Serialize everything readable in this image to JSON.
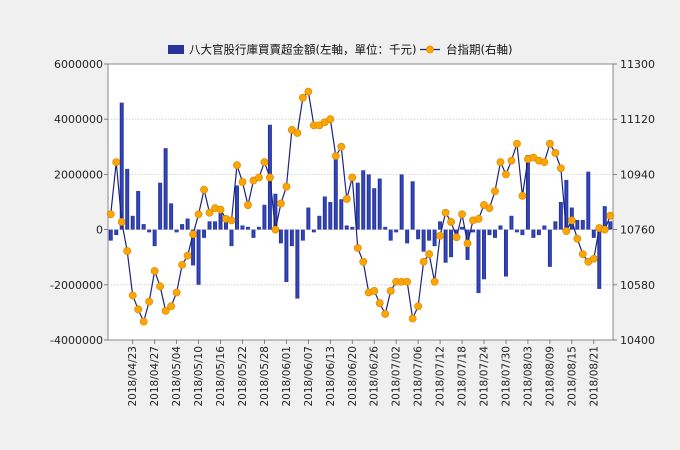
{
  "chart_data": {
    "type": "bar-line-combo",
    "title": "",
    "legend": {
      "position": "top-center",
      "items": [
        {
          "label": "八大官股行庫買賣超金額(左軸，單位：千元)",
          "kind": "bar",
          "color": "#27329a"
        },
        {
          "label": "台指期(右軸)",
          "kind": "line-marker",
          "color": "#1a237e",
          "marker": "#ffa500"
        }
      ]
    },
    "grid": true,
    "y_left": {
      "min": -4000000,
      "max": 6000000,
      "ticks": [
        -4000000,
        -2000000,
        0,
        2000000,
        4000000,
        6000000
      ],
      "tick_labels": [
        "-4000000",
        "-2000000",
        "0",
        "2000000",
        "4000000",
        "6000000"
      ]
    },
    "y_right": {
      "min": 10400,
      "max": 11300,
      "ticks": [
        10400,
        10580,
        10760,
        10940,
        11120,
        11300
      ],
      "tick_labels": [
        "10400",
        "10580",
        "10760",
        "10940",
        "11120",
        "11300"
      ]
    },
    "x_tick_labels": [
      {
        "index": 4,
        "label": "2018/04/23"
      },
      {
        "index": 8,
        "label": "2018/04/27"
      },
      {
        "index": 12,
        "label": "2018/05/04"
      },
      {
        "index": 16,
        "label": "2018/05/10"
      },
      {
        "index": 20,
        "label": "2018/05/16"
      },
      {
        "index": 24,
        "label": "2018/05/22"
      },
      {
        "index": 28,
        "label": "2018/05/28"
      },
      {
        "index": 32,
        "label": "2018/06/01"
      },
      {
        "index": 36,
        "label": "2018/06/07"
      },
      {
        "index": 40,
        "label": "2018/06/13"
      },
      {
        "index": 44,
        "label": "2018/06/20"
      },
      {
        "index": 48,
        "label": "2018/06/26"
      },
      {
        "index": 52,
        "label": "2018/07/02"
      },
      {
        "index": 56,
        "label": "2018/07/06"
      },
      {
        "index": 60,
        "label": "2018/07/12"
      },
      {
        "index": 64,
        "label": "2018/07/18"
      },
      {
        "index": 68,
        "label": "2018/07/24"
      },
      {
        "index": 72,
        "label": "2018/07/30"
      },
      {
        "index": 76,
        "label": "2018/08/03"
      },
      {
        "index": 80,
        "label": "2018/08/09"
      },
      {
        "index": 84,
        "label": "2018/08/15"
      },
      {
        "index": 88,
        "label": "2018/08/21"
      }
    ],
    "series": [
      {
        "name": "八大官股行庫買賣超金額(左軸，單位：千元)",
        "axis": "left",
        "type": "bar",
        "values": [
          -400000,
          -200000,
          4600000,
          2200000,
          500000,
          1400000,
          200000,
          -100000,
          -600000,
          1700000,
          2950000,
          950000,
          -100000,
          200000,
          400000,
          -1300000,
          -2000000,
          -300000,
          300000,
          300000,
          600000,
          300000,
          -600000,
          1600000,
          150000,
          100000,
          -300000,
          100000,
          900000,
          3800000,
          1300000,
          -500000,
          -1900000,
          -600000,
          -2500000,
          -400000,
          800000,
          -100000,
          500000,
          1200000,
          1000000,
          2700000,
          1100000,
          150000,
          100000,
          1700000,
          2150000,
          2000000,
          1500000,
          1850000,
          100000,
          -400000,
          -100000,
          2000000,
          -500000,
          1750000,
          -350000,
          -800000,
          -400000,
          -600000,
          300000,
          -1200000,
          -1000000,
          -200000,
          100000,
          -1100000,
          -100000,
          -2300000,
          -1800000,
          -200000,
          -300000,
          150000,
          -1700000,
          500000,
          -100000,
          -200000,
          2700000,
          -300000,
          -200000,
          150000,
          -1350000,
          300000,
          1000000,
          1800000,
          800000,
          350000,
          350000,
          2100000,
          -300000,
          -2150000,
          850000,
          300000
        ],
        "color": "#27329a"
      },
      {
        "name": "台指期(右軸)",
        "axis": "right",
        "type": "line",
        "values": [
          10810,
          10980,
          10785,
          10690,
          10545,
          10500,
          10460,
          10525,
          10625,
          10575,
          10495,
          10510,
          10555,
          10645,
          10675,
          10745,
          10810,
          10890,
          10815,
          10830,
          10825,
          10795,
          10790,
          10970,
          10915,
          10840,
          10920,
          10930,
          10980,
          10930,
          10760,
          10845,
          10900,
          11085,
          11075,
          11190,
          11210,
          11100,
          11100,
          11110,
          11120,
          11000,
          11030,
          10860,
          10930,
          10700,
          10655,
          10555,
          10560,
          10520,
          10485,
          10560,
          10590,
          10590,
          10590,
          10470,
          10510,
          10655,
          10680,
          10590,
          10740,
          10815,
          10785,
          10735,
          10810,
          10715,
          10790,
          10795,
          10840,
          10830,
          10885,
          10980,
          10940,
          10985,
          11040,
          10870,
          10990,
          10995,
          10985,
          10980,
          11040,
          11010,
          10960,
          10755,
          10790,
          10730,
          10680,
          10655,
          10665,
          10765,
          10760,
          10805
        ]
      }
    ]
  }
}
